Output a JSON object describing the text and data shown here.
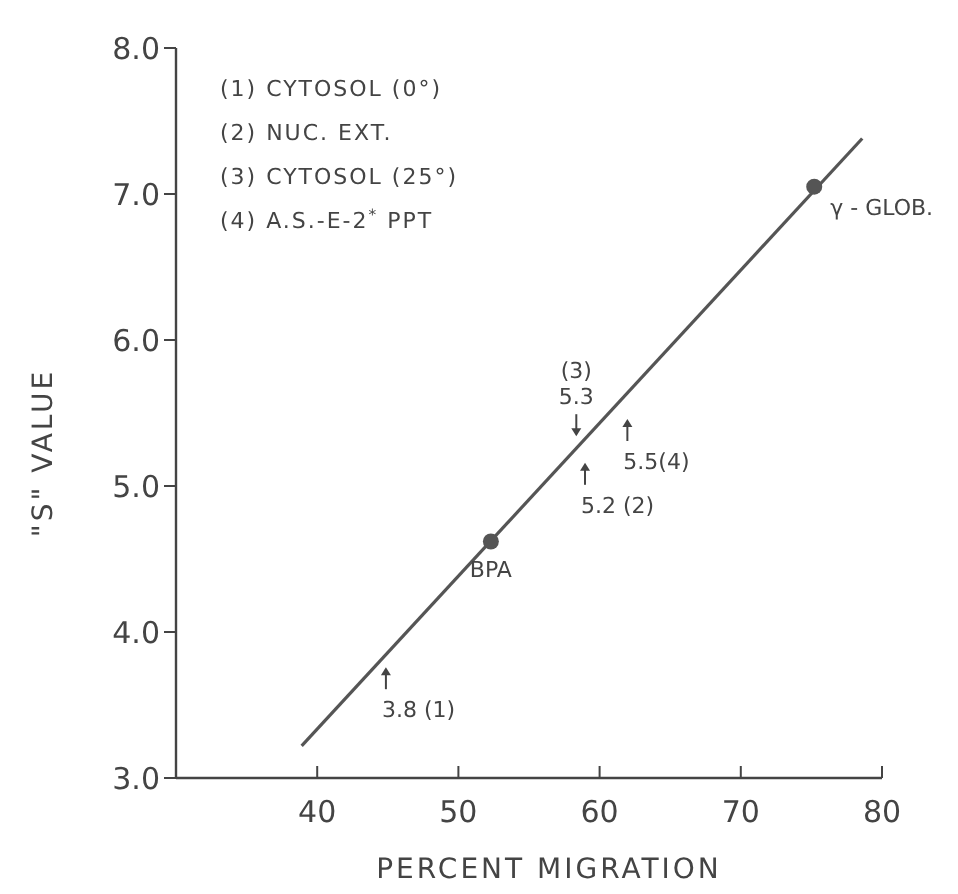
{
  "chart_data": {
    "type": "scatter",
    "xlabel": "PERCENT MIGRATION",
    "ylabel": "\"S\" VALUE",
    "xlim": [
      30,
      80
    ],
    "xticks": [
      40,
      50,
      60,
      70,
      80
    ],
    "ylim": [
      3,
      8
    ],
    "yticks": [
      {
        "value": 3,
        "label": "3.0"
      },
      {
        "value": 4,
        "label": "4.0"
      },
      {
        "value": 5,
        "label": "5.0"
      },
      {
        "value": 6,
        "label": "6.0"
      },
      {
        "value": 7,
        "label": "7.0"
      },
      {
        "value": 8,
        "label": "8.0"
      }
    ],
    "grid": false,
    "series": [
      {
        "type": "line",
        "marker": "none",
        "color": "#555555",
        "x": [
          38.9,
          78.6
        ],
        "values": [
          3.22,
          7.38
        ]
      },
      {
        "marker": "circle",
        "color": "#555555",
        "x": [
          52.3,
          75.2
        ],
        "values": [
          4.62,
          7.05
        ]
      }
    ],
    "annotations": [
      "(1) CYTOSOL (0°)",
      "(2) NUC. EXT.",
      "(3) CYTOSOL (25°)",
      "(4) A.S.-E-2$^{*}$ PPT",
      {
        "text": "BPA",
        "x": 52.3,
        "y": 4.62
      },
      {
        "text": "γ - GLOB.",
        "x": 75.2,
        "y": 7.05
      },
      {
        "text": "3.8 (1)",
        "x": 44.3,
        "y": 3.8
      },
      {
        "text": "5.2 (2)",
        "x": 58.4,
        "y": 5.2
      },
      {
        "text": "(3)\n5.3",
        "x": 59.2,
        "y": 5.3
      },
      {
        "text": "5.5(4)",
        "x": 61.4,
        "y": 5.5
      }
    ]
  }
}
